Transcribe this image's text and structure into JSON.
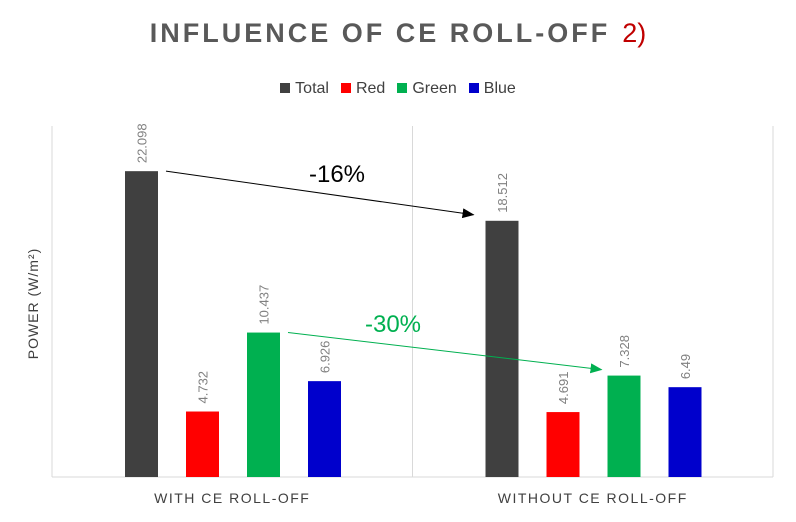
{
  "title": "INFLUENCE OF CE ROLL-OFF",
  "title_mark": "2)",
  "colors": {
    "title_mark": "#c00000",
    "arrow_total": "#000000",
    "arrow_green": "#00b050",
    "label_text": "#808080"
  },
  "chart_data": {
    "type": "bar",
    "categories": [
      "WITH CE ROLL-OFF",
      "WITHOUT CE ROLL-OFF"
    ],
    "series": [
      {
        "name": "Total",
        "color": "#404040",
        "values": [
          22.098,
          18.512
        ]
      },
      {
        "name": "Red",
        "color": "#ff0000",
        "values": [
          4.732,
          4.691
        ]
      },
      {
        "name": "Green",
        "color": "#00b050",
        "values": [
          10.437,
          7.328
        ]
      },
      {
        "name": "Blue",
        "color": "#0000cc",
        "values": [
          6.926,
          6.49
        ]
      }
    ],
    "ylabel": "POWER (W/m²)",
    "ylim": [
      0,
      25
    ],
    "gridlines": false,
    "legend_position": "top",
    "annotations": [
      {
        "text": "-16%",
        "from": {
          "category": 0,
          "series": "Total"
        },
        "to": {
          "category": 1,
          "series": "Total"
        }
      },
      {
        "text": "-30%",
        "from": {
          "category": 0,
          "series": "Green"
        },
        "to": {
          "category": 1,
          "series": "Green"
        }
      }
    ]
  }
}
